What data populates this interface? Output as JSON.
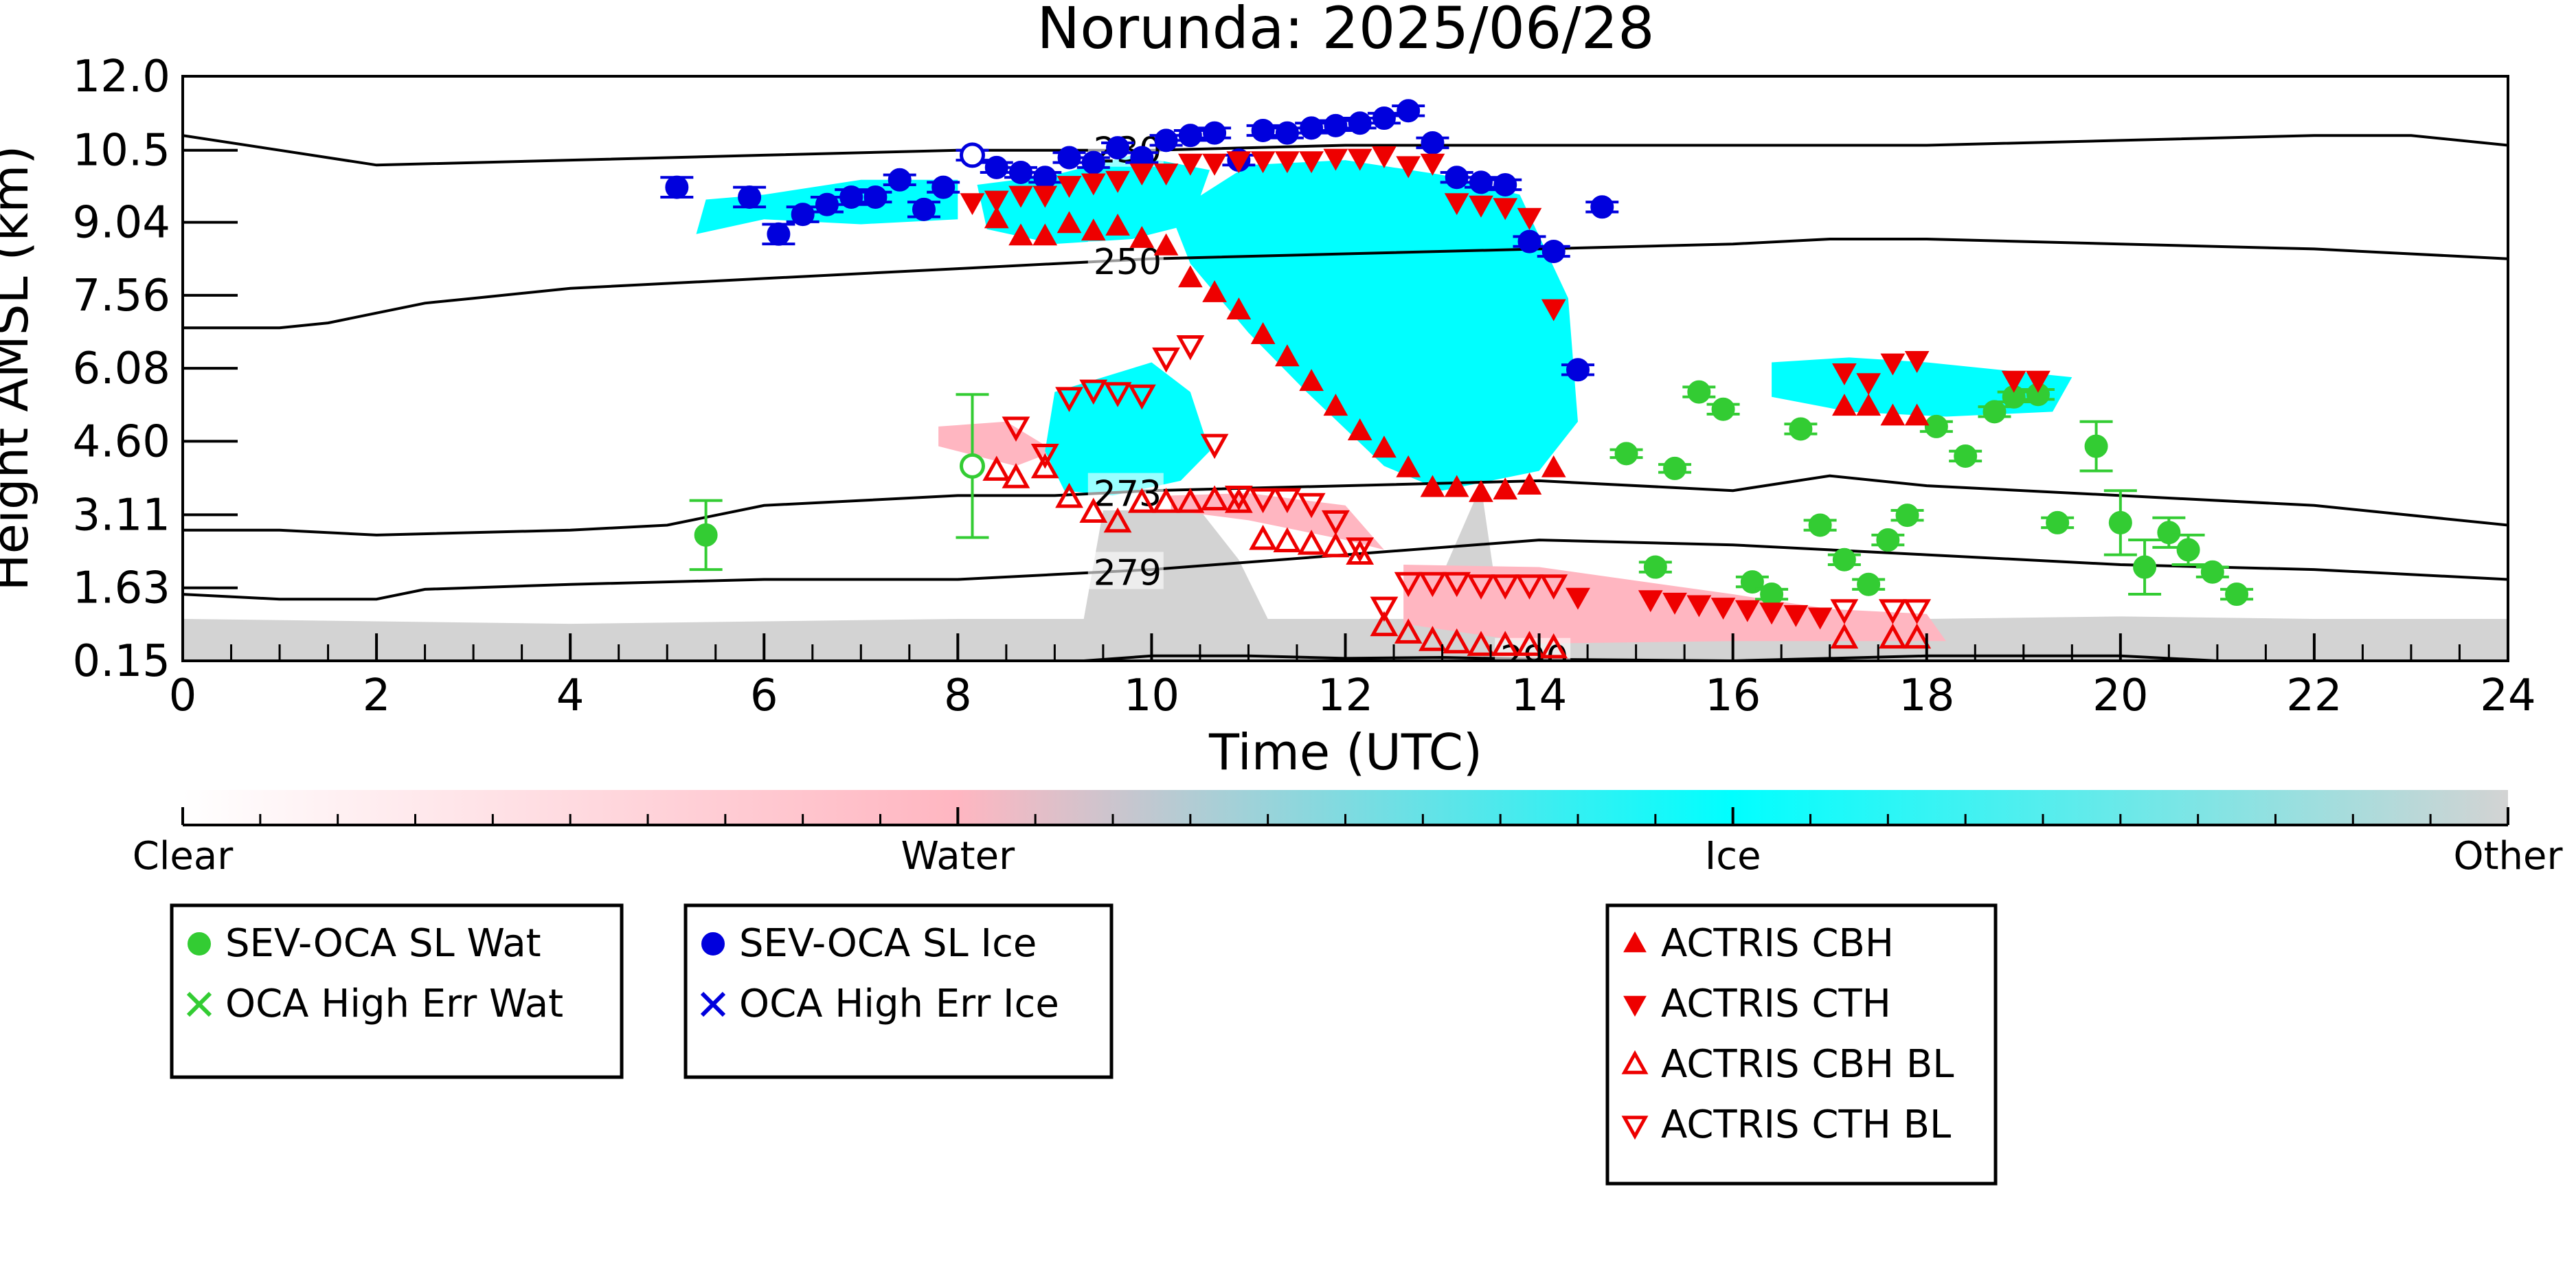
{
  "chart_data": {
    "type": "scatter",
    "title": "Norunda: 2025/06/28",
    "xlabel": "Time (UTC)",
    "ylabel": "Height AMSL (km)",
    "xlim": [
      0,
      24
    ],
    "ylim": [
      0.15,
      12.0
    ],
    "xticks": [
      "0",
      "2",
      "4",
      "6",
      "8",
      "10",
      "12",
      "14",
      "16",
      "18",
      "20",
      "22",
      "24"
    ],
    "yticks": [
      "0.15",
      "1.63",
      "3.11",
      "4.60",
      "6.08",
      "7.56",
      "9.04",
      "10.5",
      "12.0"
    ],
    "colorbar": {
      "labels": [
        "Clear",
        "Water",
        "Ice",
        "Other"
      ],
      "colors": [
        "#ffffff",
        "#ffb6c1",
        "#00ffff",
        "#d3d3d3"
      ]
    },
    "contours": [
      {
        "label": "230",
        "x": [
          0,
          1,
          2,
          4,
          6,
          8,
          10,
          12,
          14,
          16,
          18,
          20,
          22,
          23,
          24
        ],
        "y": [
          10.8,
          10.5,
          10.2,
          10.3,
          10.4,
          10.5,
          10.5,
          10.6,
          10.6,
          10.6,
          10.6,
          10.7,
          10.8,
          10.8,
          10.6
        ]
      },
      {
        "label": "250",
        "x": [
          0,
          1,
          1.5,
          2,
          2.5,
          3,
          4,
          6,
          8,
          10,
          12,
          14,
          16,
          17,
          18,
          20,
          22,
          24
        ],
        "y": [
          6.9,
          6.9,
          7.0,
          7.2,
          7.4,
          7.5,
          7.7,
          7.9,
          8.1,
          8.3,
          8.4,
          8.5,
          8.6,
          8.7,
          8.7,
          8.6,
          8.5,
          8.3
        ]
      },
      {
        "label": "273",
        "x": [
          0,
          1,
          2,
          4,
          5,
          6,
          7,
          8,
          9,
          10,
          12,
          14,
          16,
          17,
          18,
          20,
          22,
          24
        ],
        "y": [
          2.8,
          2.8,
          2.7,
          2.8,
          2.9,
          3.3,
          3.4,
          3.5,
          3.5,
          3.6,
          3.7,
          3.8,
          3.6,
          3.9,
          3.7,
          3.5,
          3.3,
          2.9
        ]
      },
      {
        "label": "279",
        "x": [
          0,
          1,
          2,
          2.5,
          4,
          6,
          8,
          9,
          10,
          12,
          14,
          16,
          18,
          20,
          22,
          24
        ],
        "y": [
          1.5,
          1.4,
          1.4,
          1.6,
          1.7,
          1.8,
          1.8,
          1.9,
          2.0,
          2.3,
          2.6,
          2.5,
          2.3,
          2.1,
          2.0,
          1.8
        ]
      },
      {
        "label": "290",
        "x": [
          9.3,
          10,
          11,
          12,
          13,
          14,
          16,
          18,
          20,
          21,
          22
        ],
        "y": [
          0.15,
          0.25,
          0.25,
          0.2,
          0.22,
          0.18,
          0.15,
          0.25,
          0.25,
          0.15,
          0.15
        ]
      }
    ],
    "series": [
      {
        "name": "SEV-OCA SL Wat",
        "color": "#33cc33",
        "marker": "circle",
        "x": [
          5.4,
          8.15,
          14.9,
          15.2,
          15.4,
          15.65,
          15.9,
          16.2,
          16.4,
          16.7,
          16.9,
          17.15,
          17.4,
          17.6,
          17.8,
          18.1,
          18.4,
          18.7,
          18.9,
          19.15,
          19.35,
          19.75,
          20.0,
          20.25,
          20.5,
          20.7,
          20.95,
          21.2
        ],
        "y": [
          2.7,
          4.1,
          4.35,
          2.05,
          4.05,
          5.6,
          5.25,
          1.75,
          1.5,
          4.85,
          2.9,
          2.2,
          1.7,
          2.6,
          3.1,
          4.9,
          4.3,
          5.2,
          5.5,
          5.55,
          2.95,
          4.5,
          2.95,
          2.05,
          2.75,
          2.4,
          1.95,
          1.5
        ],
        "yerr": [
          0.7,
          1.45,
          0.08,
          0.1,
          0.08,
          0.1,
          0.1,
          0.1,
          0.1,
          0.1,
          0.1,
          0.1,
          0.1,
          0.1,
          0.1,
          0.1,
          0.1,
          0.1,
          0.1,
          0.1,
          0.1,
          0.5,
          0.65,
          0.55,
          0.3,
          0.3,
          0.1,
          0.1
        ],
        "hollow_index": [
          1
        ]
      },
      {
        "name": "SEV-OCA SL Ice",
        "color": "#0000dd",
        "marker": "circle",
        "x": [
          5.1,
          5.85,
          6.15,
          6.4,
          6.65,
          6.9,
          7.15,
          7.4,
          7.65,
          7.85,
          8.15,
          8.4,
          8.65,
          8.9,
          9.15,
          9.4,
          9.65,
          9.9,
          10.15,
          10.4,
          10.65,
          10.9,
          11.15,
          11.4,
          11.65,
          11.9,
          12.15,
          12.4,
          12.65,
          12.9,
          13.15,
          13.4,
          13.65,
          13.9,
          14.15,
          14.4,
          14.65
        ],
        "y": [
          9.75,
          9.55,
          8.8,
          9.2,
          9.4,
          9.55,
          9.55,
          9.9,
          9.3,
          9.75,
          10.4,
          10.15,
          10.05,
          9.95,
          10.35,
          10.25,
          10.55,
          10.35,
          10.7,
          10.8,
          10.85,
          10.3,
          10.9,
          10.85,
          10.95,
          11.0,
          11.05,
          11.15,
          11.3,
          10.65,
          9.95,
          9.85,
          9.8,
          8.65,
          8.45,
          6.05,
          9.35
        ],
        "yerr": [
          0.2,
          0.2,
          0.2,
          0.15,
          0.15,
          0.15,
          0.1,
          0.1,
          0.15,
          0.1,
          0.1,
          0.1,
          0.1,
          0.1,
          0.1,
          0.1,
          0.1,
          0.1,
          0.1,
          0.1,
          0.1,
          0.1,
          0.1,
          0.1,
          0.1,
          0.1,
          0.1,
          0.1,
          0.1,
          0.1,
          0.1,
          0.1,
          0.1,
          0.1,
          0.1,
          0.1,
          0.1
        ],
        "hollow_index": [
          10
        ]
      },
      {
        "name": "OCA High Err Wat",
        "color": "#33cc33",
        "marker": "x",
        "x": [],
        "y": []
      },
      {
        "name": "OCA High Err Ice",
        "color": "#0000dd",
        "marker": "x",
        "x": [],
        "y": []
      },
      {
        "name": "ACTRIS CBH",
        "color": "#ee0000",
        "marker": "triangle-up",
        "x": [
          8.4,
          8.65,
          8.9,
          9.15,
          9.4,
          9.65,
          9.9,
          10.15,
          10.4,
          10.65,
          10.9,
          11.15,
          11.4,
          11.65,
          11.9,
          12.15,
          12.4,
          12.65,
          12.9,
          13.15,
          13.4,
          13.65,
          13.9,
          14.15,
          17.15,
          17.4,
          17.65,
          17.9
        ],
        "y": [
          9.1,
          8.75,
          8.75,
          9.0,
          8.85,
          8.95,
          8.7,
          8.55,
          7.9,
          7.6,
          7.25,
          6.75,
          6.3,
          5.8,
          5.3,
          4.8,
          4.45,
          4.05,
          3.65,
          3.65,
          3.55,
          3.6,
          3.7,
          4.05,
          5.3,
          5.3,
          5.1,
          5.1
        ]
      },
      {
        "name": "ACTRIS CTH",
        "color": "#ee0000",
        "marker": "triangle-down",
        "x": [
          8.15,
          8.4,
          8.65,
          8.9,
          9.15,
          9.4,
          9.65,
          9.9,
          10.15,
          10.4,
          10.65,
          10.9,
          11.15,
          11.4,
          11.65,
          11.9,
          12.15,
          12.4,
          12.65,
          12.9,
          13.15,
          13.4,
          13.65,
          13.9,
          14.15,
          14.4,
          15.15,
          15.4,
          15.65,
          15.9,
          16.15,
          16.4,
          16.65,
          16.9,
          17.15,
          17.4,
          17.65,
          17.9,
          18.9,
          19.15
        ],
        "y": [
          9.45,
          9.5,
          9.6,
          9.6,
          9.8,
          9.85,
          9.9,
          10.05,
          10.05,
          10.25,
          10.25,
          10.3,
          10.3,
          10.3,
          10.3,
          10.35,
          10.35,
          10.4,
          10.2,
          10.25,
          9.45,
          9.4,
          9.35,
          9.15,
          7.3,
          1.45,
          1.4,
          1.35,
          1.3,
          1.25,
          1.2,
          1.15,
          1.1,
          1.05,
          6.0,
          5.8,
          6.2,
          6.25,
          5.85,
          5.85
        ]
      },
      {
        "name": "ACTRIS CBH BL",
        "color": "#ee0000",
        "marker": "triangle-up-open",
        "x": [
          8.4,
          8.6,
          8.9,
          9.15,
          9.4,
          9.65,
          9.9,
          10.15,
          10.4,
          10.65,
          10.9,
          11.15,
          11.4,
          11.65,
          11.9,
          12.15,
          12.4,
          12.65,
          12.9,
          13.15,
          13.4,
          13.65,
          13.9,
          14.15,
          17.15,
          17.65,
          17.9
        ],
        "y": [
          4.0,
          3.85,
          4.05,
          3.45,
          3.15,
          2.95,
          3.35,
          3.35,
          3.35,
          3.4,
          3.35,
          2.6,
          2.55,
          2.5,
          2.45,
          2.3,
          0.85,
          0.7,
          0.55,
          0.5,
          0.45,
          0.45,
          0.45,
          0.4,
          0.6,
          0.6,
          0.6
        ]
      },
      {
        "name": "ACTRIS CTH BL",
        "color": "#ee0000",
        "marker": "triangle-down-open",
        "x": [
          8.6,
          8.9,
          9.15,
          9.4,
          9.65,
          9.9,
          10.15,
          10.4,
          10.65,
          10.9,
          11.15,
          11.4,
          11.65,
          11.9,
          12.15,
          12.4,
          12.65,
          12.9,
          13.15,
          13.4,
          13.65,
          13.9,
          14.15,
          17.15,
          17.65,
          17.9
        ],
        "y": [
          4.9,
          4.35,
          5.5,
          5.65,
          5.6,
          5.55,
          6.3,
          6.55,
          4.55,
          3.5,
          3.45,
          3.45,
          3.35,
          3.0,
          2.45,
          1.25,
          1.75,
          1.75,
          1.75,
          1.7,
          1.7,
          1.7,
          1.7,
          1.2,
          1.2,
          1.2
        ]
      }
    ],
    "legend": [
      {
        "entries": [
          "SEV-OCA SL Wat",
          "OCA High Err Wat"
        ],
        "placement": "bottom-left"
      },
      {
        "entries": [
          "SEV-OCA SL Ice",
          "OCA High Err Ice"
        ],
        "placement": "bottom-center-left"
      },
      {
        "entries": [
          "ACTRIS CBH",
          "ACTRIS CTH",
          "ACTRIS CBH BL",
          "ACTRIS CTH BL"
        ],
        "placement": "bottom-center-right"
      }
    ],
    "grid": false
  }
}
